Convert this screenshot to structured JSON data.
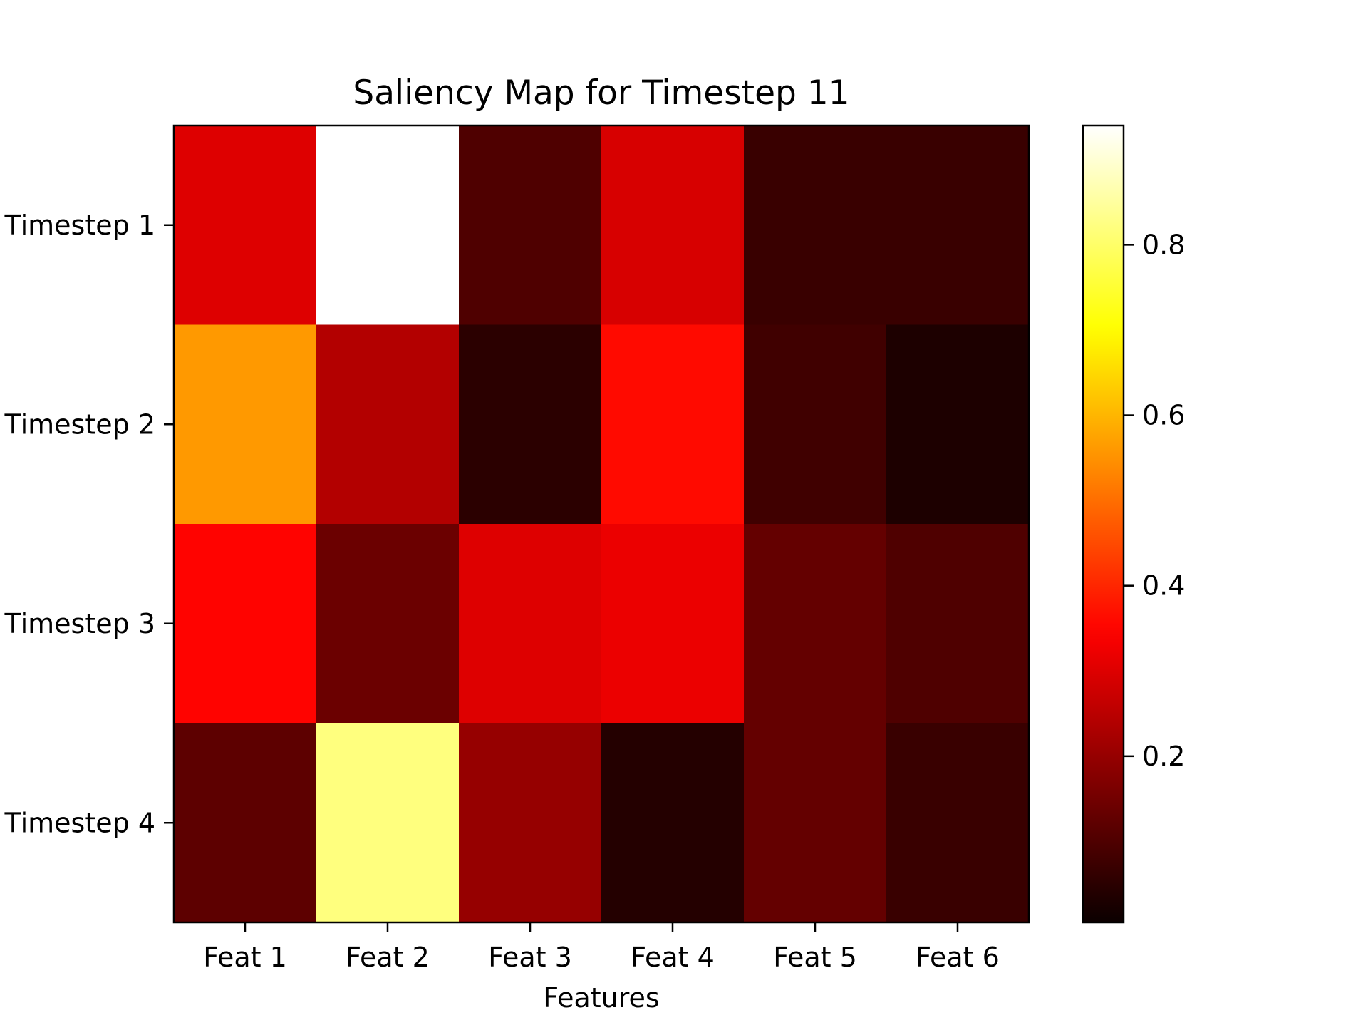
{
  "chart_data": {
    "type": "heatmap",
    "title": "Saliency Map for Timestep 11",
    "xlabel": "Features",
    "ylabel": "",
    "x_categories": [
      "Feat 1",
      "Feat 2",
      "Feat 3",
      "Feat 4",
      "Feat 5",
      "Feat 6"
    ],
    "y_categories": [
      "Timestep 1",
      "Timestep 2",
      "Timestep 3",
      "Timestep 4"
    ],
    "values": [
      [
        0.3,
        0.94,
        0.1,
        0.29,
        0.07,
        0.07
      ],
      [
        0.56,
        0.24,
        0.05,
        0.36,
        0.08,
        0.03
      ],
      [
        0.35,
        0.14,
        0.3,
        0.32,
        0.13,
        0.1
      ],
      [
        0.12,
        0.82,
        0.2,
        0.04,
        0.13,
        0.07
      ]
    ],
    "colormap": "hot",
    "vmin": 0.005,
    "vmax": 0.94,
    "colorbar": {
      "ticks": [
        0.2,
        0.4,
        0.6,
        0.8
      ],
      "tick_labels": [
        "0.2",
        "0.4",
        "0.6",
        "0.8"
      ]
    },
    "grid": false,
    "legend": "none"
  }
}
